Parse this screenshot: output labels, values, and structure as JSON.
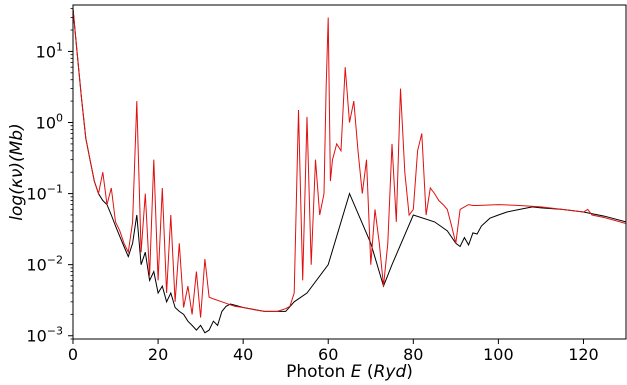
{
  "chart_data": {
    "type": "line",
    "xlabel_parts": [
      {
        "text": "Photon ",
        "italic": false
      },
      {
        "text": "E",
        "italic": true
      },
      {
        "text": " (",
        "italic": false
      },
      {
        "text": "Ryd",
        "italic": true
      },
      {
        "text": ")",
        "italic": false
      }
    ],
    "ylabel": "log(κν)(Mb)",
    "xlim": [
      0,
      130
    ],
    "ylim": [
      0.0009,
      45
    ],
    "yscale": "log",
    "x_ticks": [
      0,
      20,
      40,
      60,
      80,
      100,
      120
    ],
    "x_tick_labels": [
      "0",
      "20",
      "40",
      "60",
      "80",
      "100",
      "120"
    ],
    "y_ticks": [
      0.001,
      0.01,
      0.1,
      1,
      10
    ],
    "y_tick_labels": [
      {
        "base": "10",
        "exp": "−3"
      },
      {
        "base": "10",
        "exp": "−2"
      },
      {
        "base": "10",
        "exp": "−1"
      },
      {
        "base": "10",
        "exp": "0"
      },
      {
        "base": "10",
        "exp": "1"
      }
    ],
    "grid": false,
    "series": [
      {
        "color": "#000000",
        "x": [
          0,
          1,
          2,
          3,
          4,
          5,
          6,
          7,
          8,
          9,
          10,
          11,
          12,
          13,
          14,
          15,
          16,
          17,
          18,
          19,
          20,
          21,
          22,
          23,
          24,
          25,
          26,
          27,
          28,
          29,
          30,
          31,
          32,
          33,
          34,
          35,
          36,
          37,
          38,
          40,
          45,
          50,
          52,
          55,
          60,
          65,
          70,
          73,
          75,
          80,
          85,
          88,
          90,
          91,
          92,
          93,
          94,
          95,
          96,
          98,
          100,
          102,
          105,
          108,
          110,
          115,
          120,
          125,
          130
        ],
        "y": [
          40,
          9,
          2.2,
          0.6,
          0.3,
          0.15,
          0.1,
          0.08,
          0.07,
          0.05,
          0.035,
          0.025,
          0.018,
          0.013,
          0.02,
          0.05,
          0.01,
          0.015,
          0.006,
          0.008,
          0.004,
          0.005,
          0.003,
          0.004,
          0.0025,
          0.0022,
          0.002,
          0.0016,
          0.0014,
          0.0012,
          0.0014,
          0.0011,
          0.0012,
          0.0016,
          0.0014,
          0.0022,
          0.0026,
          0.0028,
          0.0027,
          0.0025,
          0.0022,
          0.0022,
          0.003,
          0.004,
          0.01,
          0.1,
          0.02,
          0.005,
          0.01,
          0.05,
          0.04,
          0.03,
          0.02,
          0.018,
          0.024,
          0.019,
          0.028,
          0.027,
          0.035,
          0.045,
          0.05,
          0.055,
          0.06,
          0.065,
          0.063,
          0.06,
          0.055,
          0.048,
          0.04
        ]
      },
      {
        "color": "#e01010",
        "x": [
          0,
          1,
          2,
          3,
          4,
          5,
          6,
          7,
          8,
          9,
          10,
          11,
          12,
          13,
          14,
          15,
          16,
          17,
          18,
          19,
          20,
          21,
          22,
          23,
          24,
          25,
          26,
          27,
          28,
          29,
          30,
          31,
          32,
          33,
          35,
          38,
          40,
          43,
          45,
          48,
          50,
          51,
          52,
          53,
          54,
          55,
          56,
          57,
          58,
          59,
          59.5,
          60,
          60.5,
          61,
          62,
          63,
          64,
          65,
          66,
          67,
          68,
          69,
          70,
          71,
          72,
          73,
          74,
          75,
          76,
          77,
          78,
          79,
          80,
          81,
          82,
          83,
          84,
          85,
          86,
          87,
          88,
          89,
          90,
          91,
          92,
          93,
          94,
          95,
          100,
          105,
          110,
          115,
          120,
          121,
          122,
          125,
          130
        ],
        "y": [
          40,
          9,
          2.2,
          0.6,
          0.3,
          0.15,
          0.1,
          0.2,
          0.07,
          0.12,
          0.04,
          0.03,
          0.02,
          0.015,
          0.04,
          2.0,
          0.015,
          0.1,
          0.007,
          0.3,
          0.006,
          0.12,
          0.004,
          0.05,
          0.003,
          0.02,
          0.0025,
          0.005,
          0.002,
          0.008,
          0.0018,
          0.012,
          0.0035,
          0.0033,
          0.003,
          0.0026,
          0.0025,
          0.0023,
          0.0022,
          0.0022,
          0.0024,
          0.0026,
          0.004,
          1.5,
          0.006,
          1.2,
          0.01,
          0.3,
          0.05,
          0.1,
          3.0,
          30.0,
          0.15,
          0.3,
          0.5,
          0.4,
          6.0,
          1.0,
          2.0,
          0.4,
          0.1,
          0.3,
          0.01,
          0.06,
          0.02,
          0.005,
          0.02,
          0.5,
          0.04,
          3.0,
          0.2,
          0.05,
          0.06,
          0.4,
          0.7,
          0.05,
          0.12,
          0.1,
          0.08,
          0.07,
          0.06,
          0.035,
          0.02,
          0.06,
          0.065,
          0.07,
          0.068,
          0.068,
          0.07,
          0.068,
          0.065,
          0.06,
          0.055,
          0.06,
          0.05,
          0.046,
          0.038
        ]
      }
    ]
  }
}
